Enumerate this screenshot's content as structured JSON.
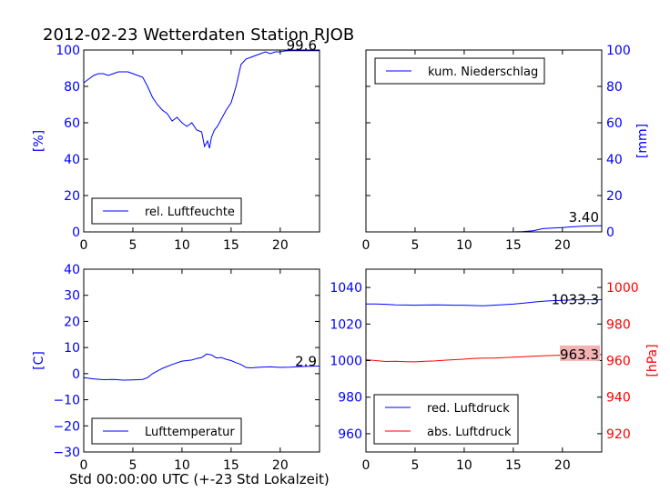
{
  "title": "2012-02-23 Wetterdaten Station RJOB",
  "xlabel": "Std 00:00:00 UTC (+-23 Std Lokalzeit)",
  "colors": {
    "blue": "#0000ff",
    "red": "#ff0000",
    "label_bg": "#f4b3b3"
  },
  "chart_data": [
    {
      "id": "humidity",
      "type": "line",
      "position": "top-left",
      "xlim": [
        0,
        24
      ],
      "ylim": [
        0,
        100
      ],
      "xticks": [
        0,
        5,
        10,
        15,
        20
      ],
      "yticks": [
        0,
        20,
        40,
        60,
        80,
        100
      ],
      "ylabel": "[%]",
      "last_value_label": "99.6",
      "legend": "lower-left",
      "series": [
        {
          "name": "rel. Luftfeuchte",
          "color": "#0000ff",
          "x": [
            0,
            0.5,
            1,
            1.5,
            2,
            2.5,
            3,
            3.5,
            4,
            4.5,
            5,
            5.5,
            6,
            6.5,
            7,
            7.5,
            8,
            8.5,
            9,
            9.5,
            10,
            10.5,
            11,
            11.5,
            12,
            12.3,
            12.6,
            12.8,
            13,
            13.3,
            13.6,
            14,
            14.5,
            15,
            15.5,
            16,
            16.5,
            17,
            17.5,
            18,
            18.5,
            19,
            19.5,
            20,
            20.5,
            21,
            21.5,
            22,
            22.5,
            23,
            23.5,
            24
          ],
          "y": [
            82,
            84,
            86,
            87,
            87,
            86,
            87,
            88,
            88,
            88,
            87,
            86,
            85,
            80,
            74,
            70,
            67,
            65,
            61,
            63,
            60,
            58,
            60,
            56,
            55,
            47,
            50,
            46,
            52,
            56,
            58,
            62,
            67,
            71,
            80,
            92,
            95,
            96,
            97,
            98,
            99,
            98,
            99,
            99,
            99.5,
            99.6,
            99.6,
            99.6,
            99.6,
            99.6,
            99.6,
            99.6
          ]
        }
      ]
    },
    {
      "id": "precip",
      "type": "line",
      "position": "top-right",
      "xlim": [
        0,
        24
      ],
      "ylim": [
        0,
        100
      ],
      "xticks": [
        0,
        5,
        10,
        15,
        20
      ],
      "yticks": [
        0,
        20,
        40,
        60,
        80,
        100
      ],
      "ylabel": "[mm]",
      "last_value_label": "3.40",
      "legend": "upper-left",
      "series": [
        {
          "name": "kum. Niederschlag",
          "color": "#0000ff",
          "x": [
            0,
            5,
            10,
            15,
            16,
            17,
            17.5,
            18,
            19,
            20,
            21,
            22,
            23,
            24
          ],
          "y": [
            0,
            0,
            0,
            0,
            0.2,
            0.6,
            1.2,
            1.8,
            2.1,
            2.4,
            2.8,
            3.1,
            3.3,
            3.4
          ]
        }
      ]
    },
    {
      "id": "temperature",
      "type": "line",
      "position": "bottom-left",
      "xlim": [
        0,
        24
      ],
      "ylim": [
        -30,
        40
      ],
      "xticks": [
        0,
        5,
        10,
        15,
        20
      ],
      "yticks": [
        -30,
        -20,
        -10,
        0,
        10,
        20,
        30,
        40
      ],
      "ylabel": "[C]",
      "last_value_label": "2.9",
      "legend": "lower-left",
      "series": [
        {
          "name": "Lufttemperatur",
          "color": "#0000ff",
          "x": [
            0,
            1,
            2,
            3,
            4,
            5,
            6,
            6.5,
            7,
            8,
            9,
            10,
            11,
            11.5,
            12,
            12.5,
            13,
            13.5,
            14,
            14.5,
            15,
            15.5,
            16,
            16.5,
            17,
            18,
            19,
            20,
            21,
            22,
            23,
            24
          ],
          "y": [
            -1.5,
            -2,
            -2.3,
            -2.2,
            -2.5,
            -2.4,
            -2.2,
            -1.5,
            0,
            2,
            3.5,
            4.8,
            5.2,
            5.8,
            6.2,
            7.5,
            7.2,
            6,
            6.2,
            5.5,
            5,
            4.2,
            3.5,
            2.4,
            2.2,
            2.5,
            2.6,
            2.4,
            2.5,
            2.7,
            2.8,
            2.9
          ]
        }
      ]
    },
    {
      "id": "pressure",
      "type": "line",
      "position": "bottom-right",
      "xlim": [
        0,
        24
      ],
      "ylim_left": [
        950,
        1050
      ],
      "ylim_right": [
        910,
        1010
      ],
      "xticks": [
        0,
        5,
        10,
        15,
        20
      ],
      "yticks_left": [
        960,
        980,
        1000,
        1020,
        1040
      ],
      "yticks_right": [
        920,
        940,
        960,
        980,
        1000
      ],
      "ylabel_right": "[hPa]",
      "labels": [
        "1033.3",
        "963.3"
      ],
      "legend": "lower-left",
      "series": [
        {
          "name": "red. Luftdruck",
          "color": "#0000ff",
          "axis": "left",
          "x": [
            0,
            1,
            2,
            3,
            4,
            5,
            6,
            7,
            8,
            9,
            10,
            11,
            12,
            13,
            14,
            15,
            16,
            17,
            18,
            19,
            20,
            21,
            22,
            23,
            24
          ],
          "y": [
            1031,
            1031,
            1030.8,
            1030.5,
            1030.4,
            1030.3,
            1030.4,
            1030.5,
            1030.4,
            1030.3,
            1030.3,
            1030.1,
            1030,
            1030.3,
            1030.6,
            1030.9,
            1031.4,
            1032,
            1032.5,
            1032.8,
            1033,
            1033.2,
            1033.3,
            1033.3,
            1033.3
          ]
        },
        {
          "name": "abs. Luftdruck",
          "color": "#ff0000",
          "axis": "right",
          "x": [
            0,
            1,
            2,
            3,
            4,
            5,
            6,
            7,
            8,
            9,
            10,
            11,
            12,
            13,
            14,
            15,
            16,
            17,
            18,
            19,
            20,
            21,
            22,
            23,
            24
          ],
          "y": [
            960.5,
            960,
            959.5,
            959.6,
            959.4,
            959.3,
            959.6,
            959.8,
            960.2,
            960.5,
            960.8,
            961.2,
            961.4,
            961.4,
            961.6,
            961.9,
            962.1,
            962.4,
            962.6,
            962.8,
            963,
            963.1,
            963.2,
            963.3,
            963.3
          ]
        }
      ]
    }
  ]
}
